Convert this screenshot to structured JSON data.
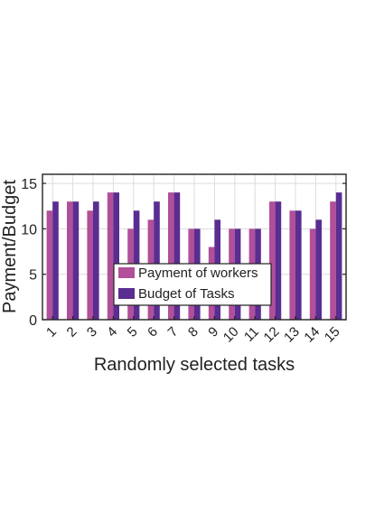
{
  "chart_data": {
    "type": "bar",
    "title": "",
    "xlabel": "Randomly selected tasks",
    "ylabel": "Payment/Budget",
    "categories": [
      "1",
      "2",
      "3",
      "4",
      "5",
      "6",
      "7",
      "8",
      "9",
      "10",
      "11",
      "12",
      "13",
      "14",
      "15"
    ],
    "ylim": [
      0,
      16
    ],
    "yticks": [
      0,
      5,
      10,
      15
    ],
    "grid": true,
    "legend_position": "center-bottom",
    "series": [
      {
        "name": "Payment of workers",
        "color": "#b14f9a",
        "values": [
          12,
          13,
          12,
          14,
          10,
          11,
          14,
          10,
          8,
          10,
          10,
          13,
          12,
          10,
          13
        ]
      },
      {
        "name": "Budget of Tasks",
        "color": "#5a2d91",
        "values": [
          13,
          13,
          13,
          14,
          12,
          13,
          14,
          10,
          11,
          10,
          10,
          13,
          12,
          11,
          14
        ]
      }
    ]
  }
}
